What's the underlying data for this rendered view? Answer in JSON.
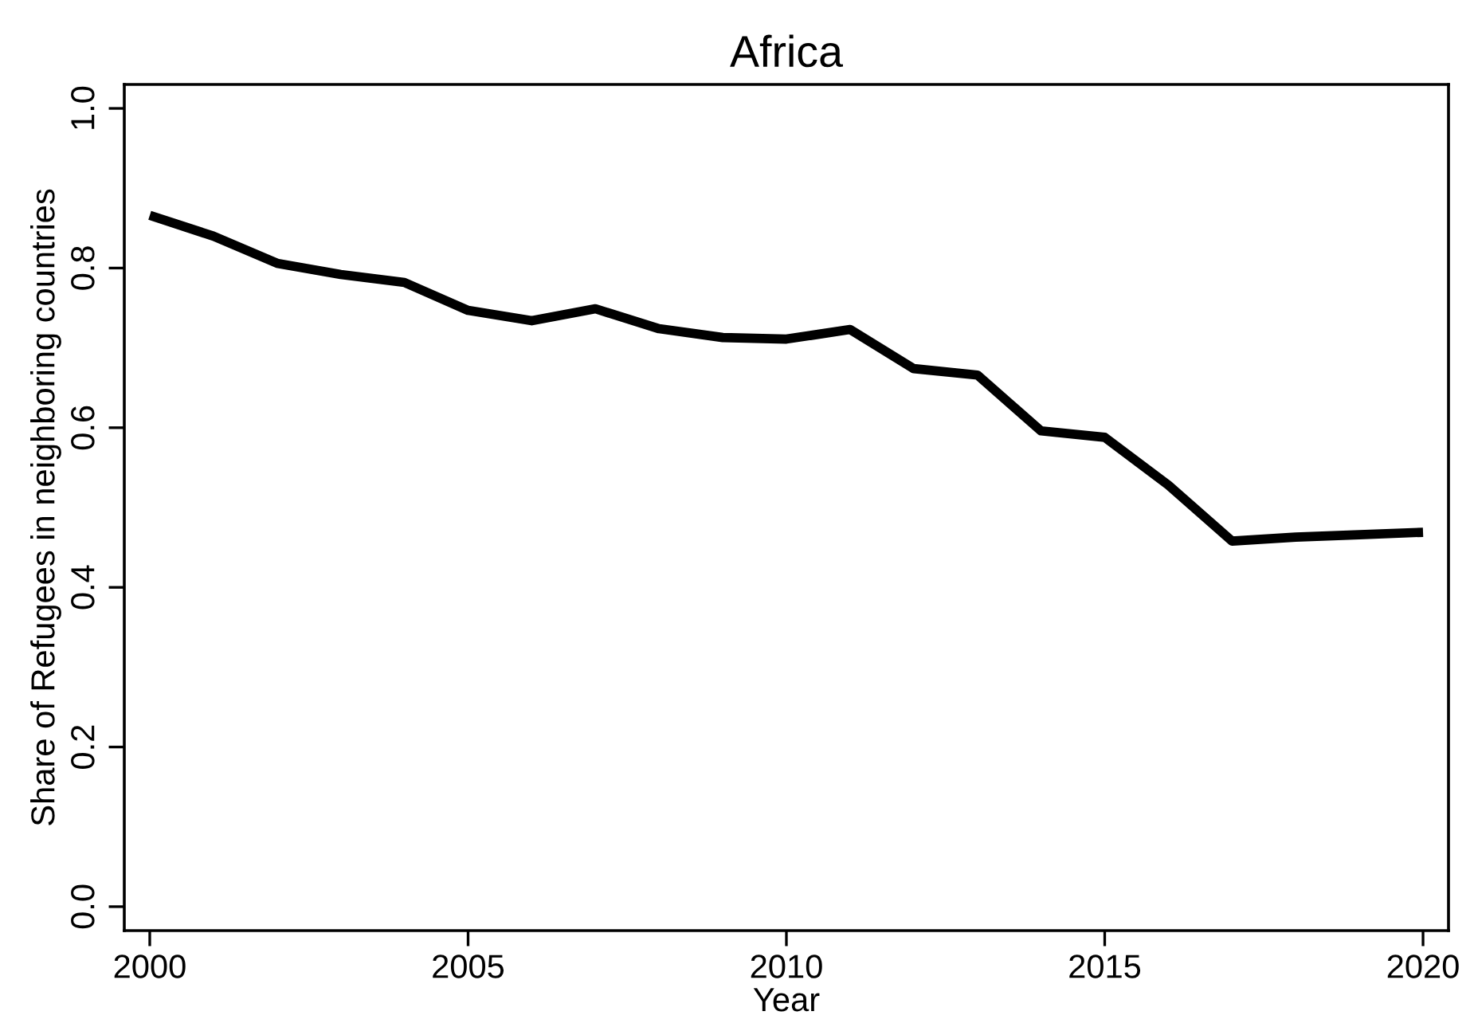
{
  "chart_data": {
    "type": "line",
    "title": "Africa",
    "xlabel": "Year",
    "ylabel": "Share of Refugees in neighboring countries",
    "x": [
      2000,
      2001,
      2002,
      2003,
      2004,
      2005,
      2006,
      2007,
      2008,
      2009,
      2010,
      2011,
      2012,
      2013,
      2014,
      2015,
      2016,
      2017,
      2018,
      2019,
      2020
    ],
    "series": [
      {
        "color": "#000000",
        "values": [
          0.866,
          0.84,
          0.806,
          0.792,
          0.782,
          0.747,
          0.734,
          0.749,
          0.724,
          0.713,
          0.711,
          0.723,
          0.674,
          0.666,
          0.596,
          0.588,
          0.528,
          0.458,
          0.463,
          0.466,
          0.469
        ]
      }
    ],
    "xlim": [
      1999.6,
      2020.4
    ],
    "ylim": [
      -0.03,
      1.03
    ],
    "xticks": [
      2000,
      2005,
      2010,
      2015,
      2020
    ],
    "yticks": [
      {
        "value": 0,
        "label": "0.0"
      },
      {
        "value": 0.2,
        "label": "0.2"
      },
      {
        "value": 0.4,
        "label": "0.4"
      },
      {
        "value": 0.6,
        "label": "0.6"
      },
      {
        "value": 0.8,
        "label": "0.8"
      },
      {
        "value": 1,
        "label": "1.0"
      }
    ],
    "grid": false,
    "marker": "none",
    "line_style": "solid"
  }
}
